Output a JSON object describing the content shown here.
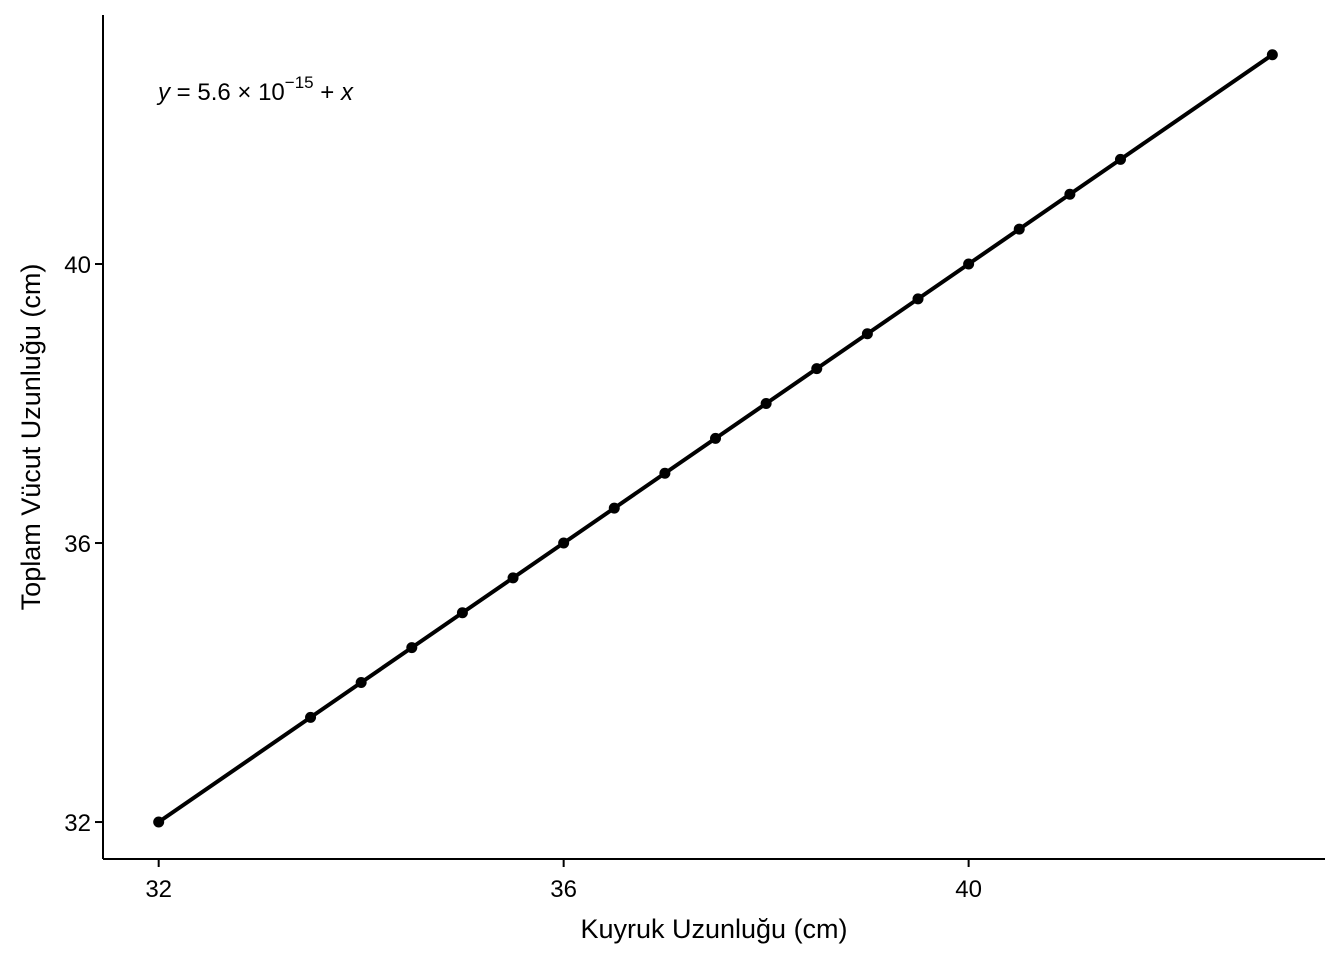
{
  "chart_data": {
    "type": "line",
    "x_label": "Kuyruk Uzunluğu (cm)",
    "y_label": "Toplam Vücut Uzunluğu (cm)",
    "annotation": [
      "y",
      " = 5.6 × 10",
      "−15",
      " + ",
      "x"
    ],
    "series": [
      {
        "color": "#000000",
        "x": [
          32,
          33.5,
          34,
          34.5,
          35,
          35.5,
          36,
          36.5,
          37,
          37.5,
          38,
          38.5,
          39,
          39.5,
          40,
          40.5,
          41,
          41.5,
          43
        ],
        "values": [
          32,
          33.5,
          34,
          34.5,
          35,
          35.5,
          36,
          36.5,
          37,
          37.5,
          38,
          38.5,
          39,
          39.5,
          40,
          40.5,
          41,
          41.5,
          43
        ]
      }
    ],
    "xlim": [
      31.45,
      43.52
    ],
    "ylim": [
      31.47,
      43.57
    ],
    "xticks": [
      32,
      36,
      40
    ],
    "yticks": [
      32,
      36,
      40
    ]
  }
}
